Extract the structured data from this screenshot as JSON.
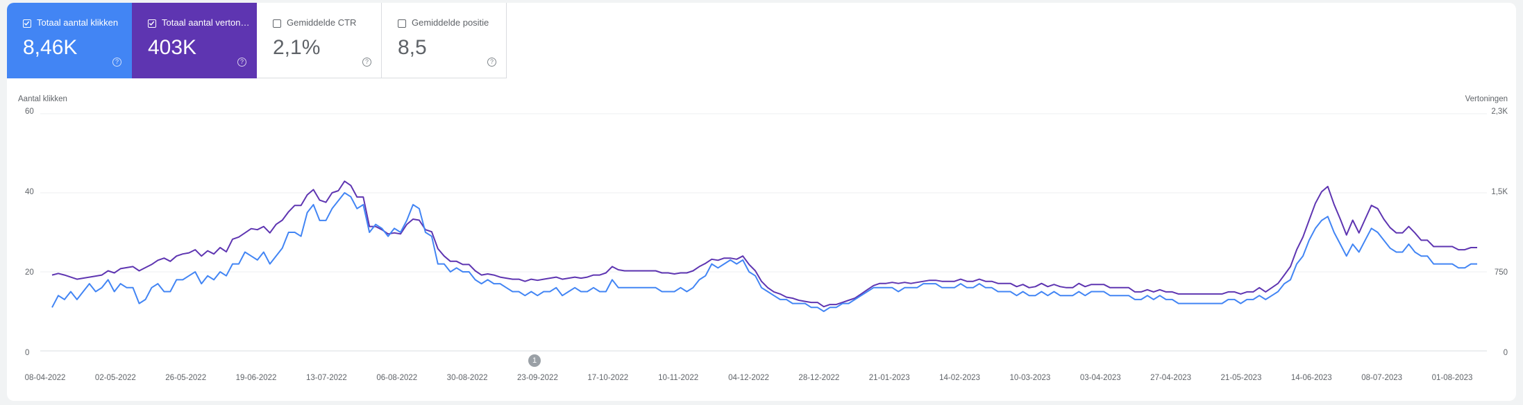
{
  "cards": [
    {
      "label": "Totaal aantal klikken",
      "value": "8,46K",
      "checked": true,
      "color": "#4285f4"
    },
    {
      "label": "Totaal aantal vertoningen",
      "value": "403K",
      "checked": true,
      "color": "#5e35b1"
    },
    {
      "label": "Gemiddelde CTR",
      "value": "2,1%",
      "checked": false
    },
    {
      "label": "Gemiddelde positie",
      "value": "8,5",
      "checked": false
    }
  ],
  "help_glyph": "?",
  "annotation": {
    "label": "1",
    "date": "23-09-2022"
  },
  "chart_data": {
    "type": "line",
    "left_axis_title": "Aantal klikken",
    "right_axis_title": "Vertoningen",
    "left_ticks": [
      "60",
      "40",
      "20",
      "0"
    ],
    "right_ticks": [
      "2,3K",
      "1,5K",
      "750",
      "0"
    ],
    "left_ylim": [
      0,
      60
    ],
    "right_ylim": [
      0,
      2250
    ],
    "x_labels": [
      "08-04-2022",
      "02-05-2022",
      "26-05-2022",
      "19-06-2022",
      "13-07-2022",
      "06-08-2022",
      "30-08-2022",
      "23-09-2022",
      "17-10-2022",
      "10-11-2022",
      "04-12-2022",
      "28-12-2022",
      "21-01-2023",
      "14-02-2023",
      "10-03-2023",
      "03-04-2023",
      "27-04-2023",
      "21-05-2023",
      "14-06-2023",
      "08-07-2023",
      "01-08-2023"
    ],
    "grid": true,
    "series": [
      {
        "name": "Totaal aantal klikken",
        "axis": "left",
        "color": "#4285f4",
        "values": [
          11,
          14,
          13,
          15,
          13,
          15,
          17,
          15,
          16,
          18,
          15,
          17,
          16,
          16,
          12,
          13,
          16,
          17,
          15,
          15,
          18,
          18,
          19,
          20,
          17,
          19,
          18,
          20,
          19,
          22,
          22,
          25,
          24,
          23,
          25,
          22,
          24,
          26,
          30,
          30,
          29,
          35,
          37,
          33,
          33,
          36,
          38,
          40,
          39,
          36,
          37,
          30,
          32,
          31,
          29,
          31,
          30,
          33,
          37,
          36,
          30,
          29,
          22,
          22,
          20,
          21,
          20,
          20,
          18,
          17,
          18,
          17,
          17,
          16,
          15,
          15,
          14,
          15,
          14,
          15,
          15,
          16,
          14,
          15,
          16,
          15,
          15,
          16,
          15,
          15,
          18,
          16,
          16,
          16,
          16,
          16,
          16,
          16,
          15,
          15,
          15,
          16,
          15,
          16,
          18,
          19,
          22,
          21,
          22,
          23,
          22,
          23,
          20,
          19,
          16,
          15,
          14,
          13,
          13,
          12,
          12,
          12,
          11,
          11,
          10,
          11,
          11,
          12,
          12,
          13,
          14,
          15,
          16,
          16,
          16,
          16,
          15,
          16,
          16,
          16,
          17,
          17,
          17,
          16,
          16,
          16,
          17,
          16,
          16,
          17,
          16,
          16,
          15,
          15,
          15,
          14,
          15,
          14,
          14,
          15,
          14,
          15,
          14,
          14,
          14,
          15,
          14,
          15,
          15,
          15,
          14,
          14,
          14,
          14,
          13,
          13,
          14,
          13,
          14,
          13,
          13,
          12,
          12,
          12,
          12,
          12,
          12,
          12,
          12,
          13,
          13,
          12,
          13,
          13,
          14,
          13,
          14,
          15,
          17,
          18,
          22,
          24,
          28,
          31,
          33,
          34,
          30,
          27,
          24,
          27,
          25,
          28,
          31,
          30,
          28,
          26,
          25,
          25,
          27,
          25,
          24,
          24,
          22,
          22,
          22,
          22,
          21,
          21,
          22,
          22
        ]
      },
      {
        "name": "Totaal aantal vertoningen",
        "axis": "right",
        "color": "#5e35b1",
        "values": [
          720,
          735,
          720,
          700,
          680,
          690,
          700,
          710,
          720,
          760,
          740,
          780,
          790,
          800,
          760,
          790,
          820,
          860,
          880,
          850,
          900,
          920,
          930,
          960,
          900,
          950,
          920,
          980,
          940,
          1060,
          1080,
          1120,
          1160,
          1150,
          1180,
          1120,
          1200,
          1240,
          1320,
          1380,
          1380,
          1480,
          1530,
          1430,
          1410,
          1500,
          1520,
          1610,
          1570,
          1460,
          1460,
          1180,
          1180,
          1150,
          1110,
          1120,
          1110,
          1200,
          1250,
          1240,
          1150,
          1130,
          970,
          900,
          850,
          850,
          820,
          820,
          760,
          720,
          730,
          720,
          700,
          690,
          680,
          680,
          660,
          680,
          670,
          680,
          690,
          700,
          680,
          690,
          700,
          690,
          700,
          720,
          720,
          740,
          800,
          770,
          760,
          760,
          760,
          760,
          760,
          760,
          740,
          740,
          730,
          740,
          740,
          760,
          800,
          830,
          870,
          860,
          880,
          880,
          870,
          900,
          820,
          760,
          660,
          600,
          560,
          540,
          510,
          500,
          480,
          470,
          460,
          460,
          420,
          440,
          440,
          460,
          480,
          500,
          540,
          580,
          620,
          640,
          640,
          650,
          640,
          650,
          640,
          650,
          660,
          670,
          670,
          660,
          660,
          660,
          680,
          660,
          660,
          680,
          660,
          660,
          640,
          640,
          640,
          610,
          630,
          600,
          610,
          640,
          610,
          630,
          610,
          600,
          600,
          640,
          610,
          630,
          630,
          630,
          600,
          600,
          600,
          600,
          560,
          560,
          580,
          560,
          580,
          560,
          560,
          540,
          540,
          540,
          540,
          540,
          540,
          540,
          540,
          560,
          560,
          540,
          560,
          560,
          600,
          560,
          600,
          640,
          720,
          800,
          960,
          1080,
          1240,
          1400,
          1510,
          1560,
          1390,
          1250,
          1100,
          1240,
          1120,
          1250,
          1380,
          1350,
          1250,
          1170,
          1120,
          1120,
          1180,
          1120,
          1050,
          1050,
          990,
          990,
          990,
          990,
          960,
          960,
          980,
          980
        ]
      }
    ]
  }
}
